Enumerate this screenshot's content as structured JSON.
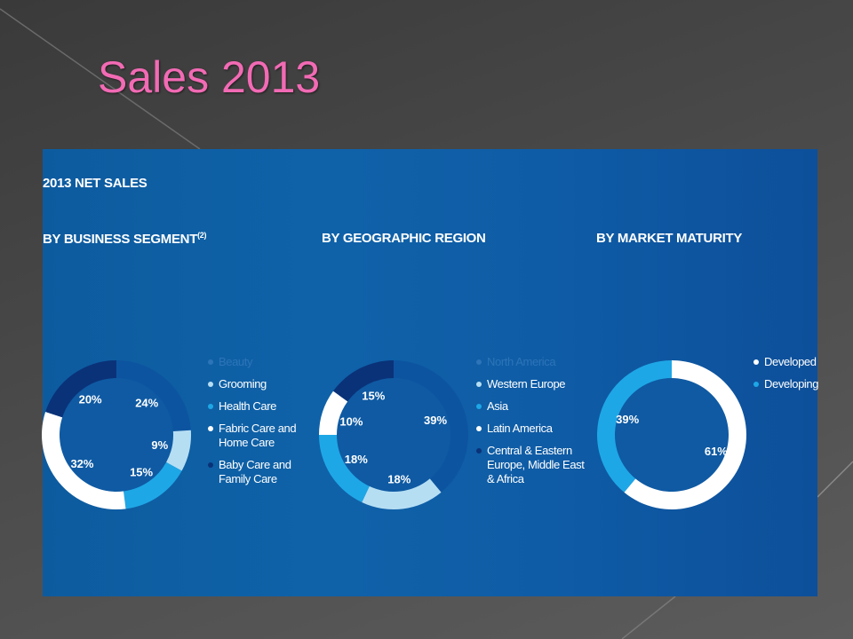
{
  "slide": {
    "title": "Sales 2013"
  },
  "panel": {
    "title": "2013 NET SALES"
  },
  "chart_data": [
    {
      "type": "pie",
      "title": "BY BUSINESS SEGMENT",
      "title_sup": "(2)",
      "slices": [
        {
          "name": "Beauty",
          "value": 24,
          "label": "24%",
          "color": "#0d54a0"
        },
        {
          "name": "Grooming",
          "value": 9,
          "label": "9%",
          "color": "#b6def3"
        },
        {
          "name": "Health Care",
          "value": 15,
          "label": "15%",
          "color": "#1ea7e6"
        },
        {
          "name": "Fabric Care and Home Care",
          "value": 32,
          "label": "32%",
          "color": "#ffffff"
        },
        {
          "name": "Baby Care and Family Care",
          "value": 20,
          "label": "20%",
          "color": "#0a3278"
        }
      ],
      "legend": [
        {
          "text": "Beauty",
          "color": "#2d74b8",
          "dim": true
        },
        {
          "text": "Grooming",
          "color": "#b6def3"
        },
        {
          "text": "Health Care",
          "color": "#1ea7e6"
        },
        {
          "text": "Fabric Care and",
          "text2": "Home Care",
          "color": "#ffffff"
        },
        {
          "text": "Baby Care and",
          "text2": "Family Care",
          "color": "#0a3278"
        }
      ]
    },
    {
      "type": "pie",
      "title": "BY GEOGRAPHIC REGION",
      "slices": [
        {
          "name": "North America",
          "value": 39,
          "label": "39%",
          "color": "#0d54a0"
        },
        {
          "name": "Western Europe",
          "value": 18,
          "label": "18%",
          "color": "#b6def3"
        },
        {
          "name": "Asia",
          "value": 18,
          "label": "18%",
          "color": "#1ea7e6"
        },
        {
          "name": "Latin America",
          "value": 10,
          "label": "10%",
          "color": "#ffffff"
        },
        {
          "name": "Central & Eastern Europe, Middle East & Africa",
          "value": 15,
          "label": "15%",
          "color": "#0a3278"
        }
      ],
      "legend": [
        {
          "text": "North America",
          "color": "#2d74b8",
          "dim": true
        },
        {
          "text": "Western Europe",
          "color": "#b6def3"
        },
        {
          "text": "Asia",
          "color": "#1ea7e6"
        },
        {
          "text": "Latin America",
          "color": "#ffffff"
        },
        {
          "text": "Central & Eastern",
          "text2": "Europe, Middle East",
          "text3": "& Africa",
          "color": "#0a3278"
        }
      ]
    },
    {
      "type": "pie",
      "title": "BY MARKET MATURITY",
      "slices": [
        {
          "name": "Developed",
          "value": 61,
          "label": "61%",
          "color": "#ffffff"
        },
        {
          "name": "Developing",
          "value": 39,
          "label": "39%",
          "color": "#1ea7e6"
        }
      ],
      "legend": [
        {
          "text": "Developed",
          "color": "#ffffff"
        },
        {
          "text": "Developing",
          "color": "#1ea7e6"
        }
      ]
    }
  ]
}
